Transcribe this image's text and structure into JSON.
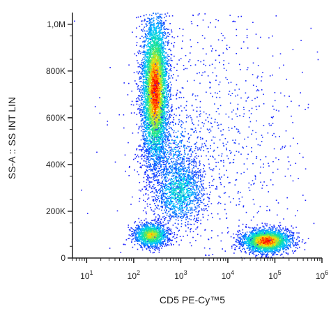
{
  "chart_data": {
    "type": "scatter",
    "subtype": "flow-cytometry-density-plot",
    "title": "",
    "xlabel": "CD5  PE-Cy™5",
    "ylabel": "SS-A :: SS INT LIN",
    "x_scale": "log",
    "xlim": [
      5,
      1000000
    ],
    "ylim": [
      0,
      1050000
    ],
    "x_ticks": [
      {
        "value": 10,
        "base": "10",
        "exp": "1"
      },
      {
        "value": 100,
        "base": "10",
        "exp": "2"
      },
      {
        "value": 1000,
        "base": "10",
        "exp": "3"
      },
      {
        "value": 10000,
        "base": "10",
        "exp": "4"
      },
      {
        "value": 100000,
        "base": "10",
        "exp": "5"
      },
      {
        "value": 1000000,
        "base": "10",
        "exp": "6"
      }
    ],
    "y_ticks": [
      {
        "value": 0,
        "label": "0"
      },
      {
        "value": 200000,
        "label": "200K"
      },
      {
        "value": 400000,
        "label": "400K"
      },
      {
        "value": 600000,
        "label": "600K"
      },
      {
        "value": 800000,
        "label": "800K"
      },
      {
        "value": 1000000,
        "label": "1,0M"
      }
    ],
    "grid": false,
    "legend": "none",
    "color_scale": [
      "#1a1aff",
      "#00c8ff",
      "#19e68c",
      "#ffe600",
      "#ff0000"
    ],
    "populations": [
      {
        "x_center": 280,
        "y_center": 720000,
        "x_spread_decades": 0.14,
        "y_spread": 160000,
        "count": 5200,
        "peak_density": 1.0
      },
      {
        "x_center": 230,
        "y_center": 100000,
        "x_spread_decades": 0.18,
        "y_spread": 25000,
        "count": 1300,
        "peak_density": 0.75
      },
      {
        "x_center": 900,
        "y_center": 290000,
        "x_spread_decades": 0.28,
        "y_spread": 75000,
        "count": 1300,
        "peak_density": 0.35
      },
      {
        "x_center": 65000,
        "y_center": 75000,
        "x_spread_decades": 0.26,
        "y_spread": 25000,
        "count": 2600,
        "peak_density": 1.0
      },
      {
        "x_center": 700,
        "y_center": 450000,
        "x_spread_decades": 0.35,
        "y_spread": 100000,
        "count": 500,
        "peak_density": 0.2
      },
      {
        "x_center": 5000,
        "y_center": 500000,
        "x_spread_decades": 1.0,
        "y_spread": 300000,
        "count": 900,
        "peak_density": 0.05
      }
    ]
  }
}
